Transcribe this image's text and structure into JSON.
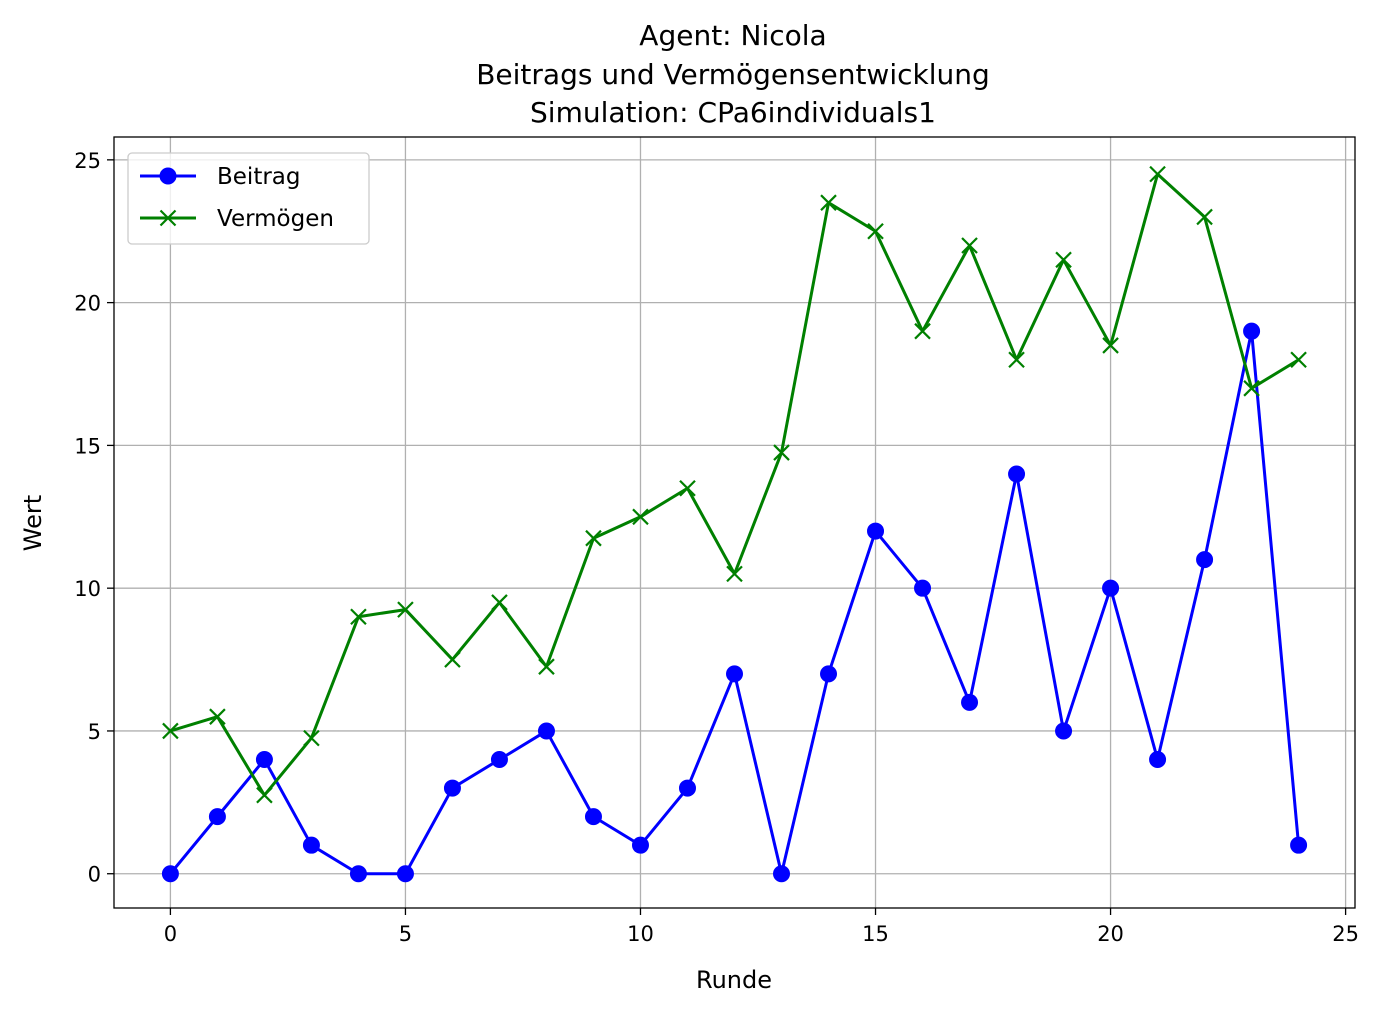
{
  "chart_data": {
    "type": "line",
    "title_lines": [
      "Agent: Nicola",
      "Beitrags und Vermögensentwicklung",
      "Simulation: CPa6individuals1"
    ],
    "xlabel": "Runde",
    "ylabel": "Wert",
    "xlim": [
      -1.2,
      25.2
    ],
    "ylim": [
      -1.2,
      25.8
    ],
    "xticks": [
      0,
      5,
      10,
      15,
      20,
      25
    ],
    "yticks": [
      0,
      5,
      10,
      15,
      20,
      25
    ],
    "grid": true,
    "legend_position": "top-left",
    "x": [
      0,
      1,
      2,
      3,
      4,
      5,
      6,
      7,
      8,
      9,
      10,
      11,
      12,
      13,
      14,
      15,
      16,
      17,
      18,
      19,
      20,
      21,
      22,
      23,
      24
    ],
    "series": [
      {
        "name": "Beitrag",
        "color": "#0000ff",
        "marker": "circle",
        "values": [
          0,
          2,
          4,
          1,
          0,
          0,
          3,
          4,
          5,
          2,
          1,
          3,
          7,
          0,
          7,
          12,
          10,
          6,
          14,
          5,
          10,
          4,
          11,
          19,
          1
        ]
      },
      {
        "name": "Vermögen",
        "color": "#008000",
        "marker": "x",
        "values": [
          5,
          5.5,
          2.75,
          4.75,
          9,
          9.25,
          7.5,
          9.5,
          7.25,
          11.75,
          12.5,
          13.5,
          10.5,
          14.75,
          23.5,
          22.5,
          19,
          22,
          18,
          21.5,
          18.5,
          24.5,
          23,
          17,
          18
        ]
      }
    ]
  }
}
